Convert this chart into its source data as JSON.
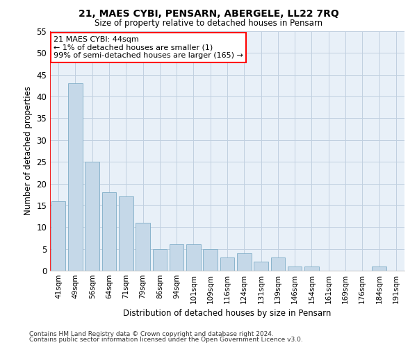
{
  "title1": "21, MAES CYBI, PENSARN, ABERGELE, LL22 7RQ",
  "title2": "Size of property relative to detached houses in Pensarn",
  "xlabel": "Distribution of detached houses by size in Pensarn",
  "ylabel": "Number of detached properties",
  "categories": [
    "41sqm",
    "49sqm",
    "56sqm",
    "64sqm",
    "71sqm",
    "79sqm",
    "86sqm",
    "94sqm",
    "101sqm",
    "109sqm",
    "116sqm",
    "124sqm",
    "131sqm",
    "139sqm",
    "146sqm",
    "154sqm",
    "161sqm",
    "169sqm",
    "176sqm",
    "184sqm",
    "191sqm"
  ],
  "values": [
    16,
    43,
    25,
    18,
    17,
    11,
    5,
    6,
    6,
    5,
    3,
    4,
    2,
    3,
    1,
    1,
    0,
    0,
    0,
    1,
    0
  ],
  "bar_color": "#c5d8e8",
  "bar_edge_color": "#8ab4cc",
  "ylim": [
    0,
    55
  ],
  "yticks": [
    0,
    5,
    10,
    15,
    20,
    25,
    30,
    35,
    40,
    45,
    50,
    55
  ],
  "annotation_line1": "21 MAES CYBI: 44sqm",
  "annotation_line2": "← 1% of detached houses are smaller (1)",
  "annotation_line3": "99% of semi-detached houses are larger (165) →",
  "footer1": "Contains HM Land Registry data © Crown copyright and database right 2024.",
  "footer2": "Contains public sector information licensed under the Open Government Licence v3.0.",
  "background_color": "#ffffff",
  "ax_background_color": "#e8f0f8",
  "grid_color": "#c0d0e0"
}
